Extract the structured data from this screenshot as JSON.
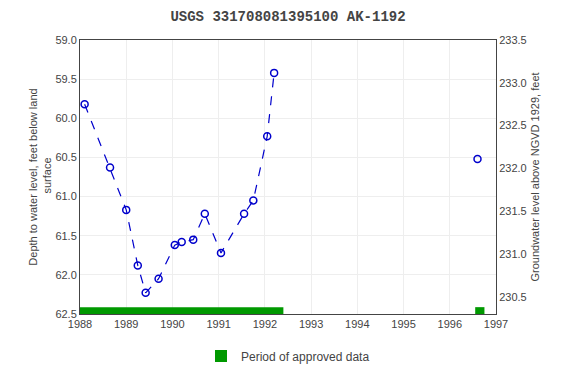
{
  "chart_data": {
    "type": "line",
    "title": "USGS 331708081395100 AK-1192",
    "y_label": "Depth to water level, feet below land\n surface",
    "y2_label": "Groundwater level above NGVD 1929, feet",
    "xlim": [
      1988,
      1997
    ],
    "xticks": [
      1988,
      1989,
      1990,
      1991,
      1992,
      1993,
      1994,
      1995,
      1996,
      1997
    ],
    "ylim": [
      62.5,
      59.0
    ],
    "yticks": [
      {
        "value": 59.0,
        "label": "59.0"
      },
      59.5,
      {
        "value": 60.0,
        "label": "60.0"
      },
      60.5,
      {
        "value": 61.0,
        "label": "61.0"
      },
      61.5,
      {
        "value": 62.0,
        "label": "62.0"
      },
      62.5
    ],
    "y2lim": [
      230.3,
      233.5
    ],
    "y2ticks": [
      233.5,
      {
        "value": 233.0,
        "label": "233.0"
      },
      232.5,
      {
        "value": 232.0,
        "label": "232.0"
      },
      231.5,
      {
        "value": 231.0,
        "label": "231.0"
      },
      230.5
    ],
    "grid": true,
    "legend": "bottom",
    "series": [
      {
        "x": [
          1988.1,
          1988.65,
          1989.0,
          1989.25,
          1989.42,
          1989.7,
          1990.05,
          1990.2,
          1990.45,
          1990.7,
          1991.05,
          1991.55,
          1991.75,
          1992.05,
          1992.2
        ],
        "values": [
          59.82,
          60.63,
          61.17,
          61.88,
          62.23,
          62.05,
          61.62,
          61.58,
          61.55,
          61.22,
          61.72,
          61.22,
          61.05,
          60.23,
          59.42
        ],
        "color": "#0000cc",
        "line_style": "dashed",
        "marker": "circle-open"
      },
      {
        "x": [
          1996.6
        ],
        "values": [
          60.52
        ],
        "color": "#0000cc",
        "line_style": "none",
        "marker": "circle-open"
      }
    ],
    "approved_periods": {
      "name": "Period of approved data",
      "color": "#009900",
      "ranges": [
        {
          "x_start": 1988.0,
          "x_end": 1992.4
        },
        {
          "x_start": 1996.55,
          "x_end": 1996.75
        }
      ]
    }
  }
}
